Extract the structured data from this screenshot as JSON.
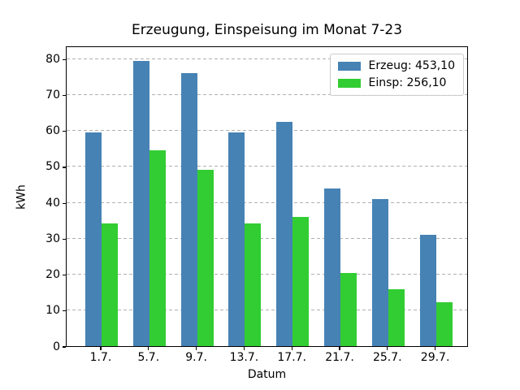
{
  "chart_data": {
    "type": "bar",
    "title": "Erzeugung, Einspeisung im Monat 7-23",
    "xlabel": "Datum",
    "ylabel": "kWh",
    "categories": [
      "1.7.",
      "5.7.",
      "9.7.",
      "13.7.",
      "17.7.",
      "21.7.",
      "25.7.",
      "29.7."
    ],
    "series": [
      {
        "name": "Erzeug",
        "legend_label": "Erzeug: 453,10",
        "total": "453,10",
        "color": "#4682b4",
        "values": [
          59.5,
          79.5,
          76.0,
          59.6,
          62.5,
          44.0,
          41.0,
          31.0
        ]
      },
      {
        "name": "Einsp",
        "legend_label": "Einsp: 256,10",
        "total": "256,10",
        "color": "#32cd32",
        "values": [
          34.1,
          54.5,
          49.0,
          34.1,
          36.0,
          20.4,
          15.8,
          12.2
        ]
      }
    ],
    "ylim": [
      0,
      83.7
    ],
    "yticks": [
      0,
      10,
      20,
      30,
      40,
      50,
      60,
      70,
      80
    ],
    "grid": "horizontal dashed",
    "legend_position": "upper right",
    "colors": {
      "grid": "#b0b0b0",
      "spine": "#000000",
      "background": "#ffffff",
      "legend_border": "#cccccc"
    }
  }
}
